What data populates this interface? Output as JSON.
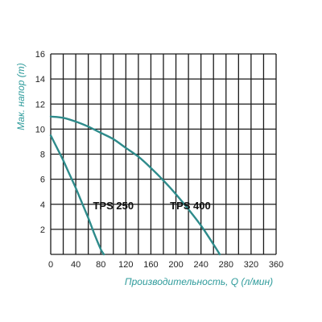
{
  "chart_data": {
    "type": "line",
    "title": "",
    "xlabel": "Производительность, Q (л/мин)",
    "ylabel": "Мак. напор (m)",
    "xlim": [
      0,
      360
    ],
    "ylim": [
      0,
      16
    ],
    "x_ticks": [
      0,
      40,
      80,
      120,
      160,
      200,
      240,
      280,
      320,
      360
    ],
    "y_ticks": [
      2,
      4,
      6,
      8,
      10,
      12,
      14,
      16
    ],
    "x_grid_step": 20,
    "grid": true,
    "legend": "none",
    "series": [
      {
        "name": "TPS 250",
        "x": [
          0,
          10,
          20,
          30,
          40,
          50,
          60,
          70,
          80,
          85
        ],
        "y": [
          9.5,
          8.5,
          7.5,
          6.4,
          5.3,
          4.1,
          2.9,
          1.6,
          0.4,
          0
        ]
      },
      {
        "name": "TPS 400",
        "x": [
          0,
          20,
          40,
          60,
          80,
          100,
          120,
          140,
          160,
          180,
          200,
          220,
          240,
          260,
          270
        ],
        "y": [
          11.0,
          10.9,
          10.6,
          10.2,
          9.7,
          9.2,
          8.5,
          7.8,
          6.9,
          5.9,
          4.8,
          3.6,
          2.3,
          0.8,
          0
        ]
      }
    ],
    "colors": {
      "curve": "#2e8b8b",
      "axis_title": "#2e9b9b",
      "grid": "#1a1a1a"
    }
  }
}
